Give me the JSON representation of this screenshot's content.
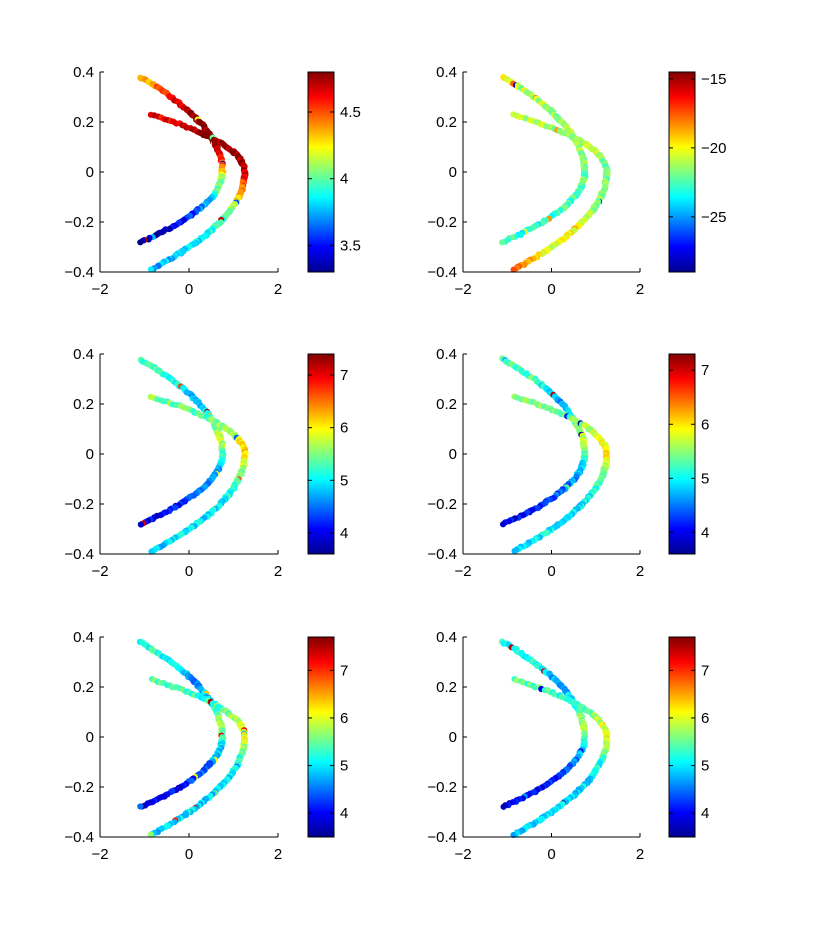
{
  "chart_data": [
    {
      "type": "scatter",
      "panel": "top-left",
      "xlim": [
        -2,
        2
      ],
      "ylim": [
        -0.4,
        0.4
      ],
      "xticks": [
        "−2",
        "0",
        "2"
      ],
      "yticks": [
        "−0.4",
        "−0.2",
        "0",
        "0.2",
        "0.4"
      ],
      "grid": false,
      "colormap": "jet",
      "color_range": [
        3.3,
        4.8
      ],
      "colorbar_ticks": [
        3.5,
        4,
        4.5
      ],
      "colorbar_tick_labels": [
        "3.5",
        "4",
        "4.5"
      ],
      "curves": [
        {
          "shape": "inner-arc",
          "vertex_x": 0.75,
          "end_x": -1.1,
          "y_top": 0.38,
          "y_bottom": -0.28,
          "color_profile": [
            4.3,
            4.6,
            4.8,
            4.8,
            4.6,
            4.1,
            3.8,
            3.5,
            3.35
          ]
        },
        {
          "shape": "outer-arc",
          "vertex_x": 1.25,
          "end_x": -0.85,
          "y_top": 0.23,
          "y_bottom": -0.39,
          "color_profile": [
            4.6,
            4.8,
            4.8,
            4.7,
            4.4,
            4.0,
            3.9,
            3.8,
            3.75
          ]
        }
      ]
    },
    {
      "type": "scatter",
      "panel": "top-right",
      "xlim": [
        -2,
        2
      ],
      "ylim": [
        -0.4,
        0.4
      ],
      "xticks": [
        "−2",
        "0",
        "2"
      ],
      "yticks": [
        "−0.4",
        "−0.2",
        "0",
        "0.2",
        "0.4"
      ],
      "grid": false,
      "colormap": "jet",
      "color_range": [
        -29,
        -14.5
      ],
      "colorbar_ticks": [
        -25,
        -20,
        -15
      ],
      "colorbar_tick_labels": [
        "−25",
        "−20",
        "−15"
      ],
      "curves": [
        {
          "shape": "inner-arc",
          "vertex_x": 0.75,
          "end_x": -1.1,
          "y_top": 0.38,
          "y_bottom": -0.28,
          "color_profile": [
            -20,
            -21,
            -21.5,
            -21,
            -21.5,
            -22,
            -22.5,
            -23,
            -23
          ]
        },
        {
          "shape": "outer-arc",
          "vertex_x": 1.25,
          "end_x": -0.85,
          "y_top": 0.23,
          "y_bottom": -0.39,
          "color_profile": [
            -21,
            -21.5,
            -21,
            -22,
            -22,
            -21.5,
            -20,
            -20.5,
            -18
          ]
        }
      ]
    },
    {
      "type": "scatter",
      "panel": "middle-left",
      "xlim": [
        -2,
        2
      ],
      "ylim": [
        -0.4,
        0.4
      ],
      "xticks": [
        "−2",
        "0",
        "2"
      ],
      "yticks": [
        "−0.4",
        "−0.2",
        "0",
        "0.2",
        "0.4"
      ],
      "grid": false,
      "colormap": "jet",
      "color_range": [
        3.6,
        7.4
      ],
      "colorbar_ticks": [
        4,
        5,
        6,
        7
      ],
      "colorbar_tick_labels": [
        "4",
        "5",
        "6",
        "7"
      ],
      "curves": [
        {
          "shape": "inner-arc",
          "vertex_x": 0.75,
          "end_x": -1.1,
          "y_top": 0.38,
          "y_bottom": -0.28,
          "color_profile": [
            5.3,
            5.2,
            4.6,
            5.2,
            5.8,
            5.0,
            4.6,
            4.2,
            4.0
          ]
        },
        {
          "shape": "outer-arc",
          "vertex_x": 1.25,
          "end_x": -0.85,
          "y_top": 0.23,
          "y_bottom": -0.39,
          "color_profile": [
            5.6,
            5.3,
            5.8,
            6.2,
            5.4,
            5.1,
            4.9,
            5.0,
            4.8
          ]
        }
      ]
    },
    {
      "type": "scatter",
      "panel": "middle-right",
      "xlim": [
        -2,
        2
      ],
      "ylim": [
        -0.4,
        0.4
      ],
      "xticks": [
        "−2",
        "0",
        "2"
      ],
      "yticks": [
        "−0.4",
        "−0.2",
        "0",
        "0.2",
        "0.4"
      ],
      "grid": false,
      "colormap": "jet",
      "color_range": [
        3.6,
        7.3
      ],
      "colorbar_ticks": [
        4,
        5,
        6,
        7
      ],
      "colorbar_tick_labels": [
        "4",
        "5",
        "6",
        "7"
      ],
      "curves": [
        {
          "shape": "inner-arc",
          "vertex_x": 0.75,
          "end_x": -1.1,
          "y_top": 0.38,
          "y_bottom": -0.28,
          "color_profile": [
            5.3,
            5.2,
            4.6,
            5.2,
            5.8,
            5.0,
            4.6,
            4.2,
            4.0
          ]
        },
        {
          "shape": "outer-arc",
          "vertex_x": 1.25,
          "end_x": -0.85,
          "y_top": 0.23,
          "y_bottom": -0.39,
          "color_profile": [
            5.6,
            5.3,
            5.8,
            6.0,
            5.4,
            5.1,
            4.9,
            5.0,
            4.8
          ]
        }
      ]
    },
    {
      "type": "scatter",
      "panel": "bottom-left",
      "xlim": [
        -2,
        2
      ],
      "ylim": [
        -0.4,
        0.4
      ],
      "xticks": [
        "−2",
        "0",
        "2"
      ],
      "yticks": [
        "−0.4",
        "−0.2",
        "0",
        "0.2",
        "0.4"
      ],
      "grid": false,
      "colormap": "jet",
      "color_range": [
        3.5,
        7.7
      ],
      "colorbar_ticks": [
        4,
        5,
        6,
        7
      ],
      "colorbar_tick_labels": [
        "4",
        "5",
        "6",
        "7"
      ],
      "curves": [
        {
          "shape": "inner-arc",
          "vertex_x": 0.75,
          "end_x": -1.1,
          "y_top": 0.38,
          "y_bottom": -0.28,
          "color_profile": [
            5.2,
            5.2,
            4.5,
            5.1,
            5.9,
            5.0,
            4.5,
            4.1,
            3.9
          ]
        },
        {
          "shape": "outer-arc",
          "vertex_x": 1.25,
          "end_x": -0.85,
          "y_top": 0.23,
          "y_bottom": -0.39,
          "color_profile": [
            5.5,
            5.2,
            5.7,
            6.2,
            5.3,
            5.0,
            4.9,
            5.0,
            4.8
          ]
        }
      ]
    },
    {
      "type": "scatter",
      "panel": "bottom-right",
      "xlim": [
        -2,
        2
      ],
      "ylim": [
        -0.4,
        0.4
      ],
      "xticks": [
        "−2",
        "0",
        "2"
      ],
      "yticks": [
        "−0.4",
        "−0.2",
        "0",
        "0.2",
        "0.4"
      ],
      "grid": false,
      "colormap": "jet",
      "color_range": [
        3.5,
        7.7
      ],
      "colorbar_ticks": [
        4,
        5,
        6,
        7
      ],
      "colorbar_tick_labels": [
        "4",
        "5",
        "6",
        "7"
      ],
      "curves": [
        {
          "shape": "inner-arc",
          "vertex_x": 0.75,
          "end_x": -1.1,
          "y_top": 0.38,
          "y_bottom": -0.28,
          "color_profile": [
            5.2,
            5.2,
            4.5,
            5.1,
            5.9,
            5.0,
            4.5,
            4.1,
            3.9
          ]
        },
        {
          "shape": "outer-arc",
          "vertex_x": 1.25,
          "end_x": -0.85,
          "y_top": 0.23,
          "y_bottom": -0.39,
          "color_profile": [
            5.5,
            5.2,
            5.7,
            6.2,
            5.3,
            5.0,
            4.9,
            5.0,
            4.8
          ]
        }
      ]
    }
  ]
}
